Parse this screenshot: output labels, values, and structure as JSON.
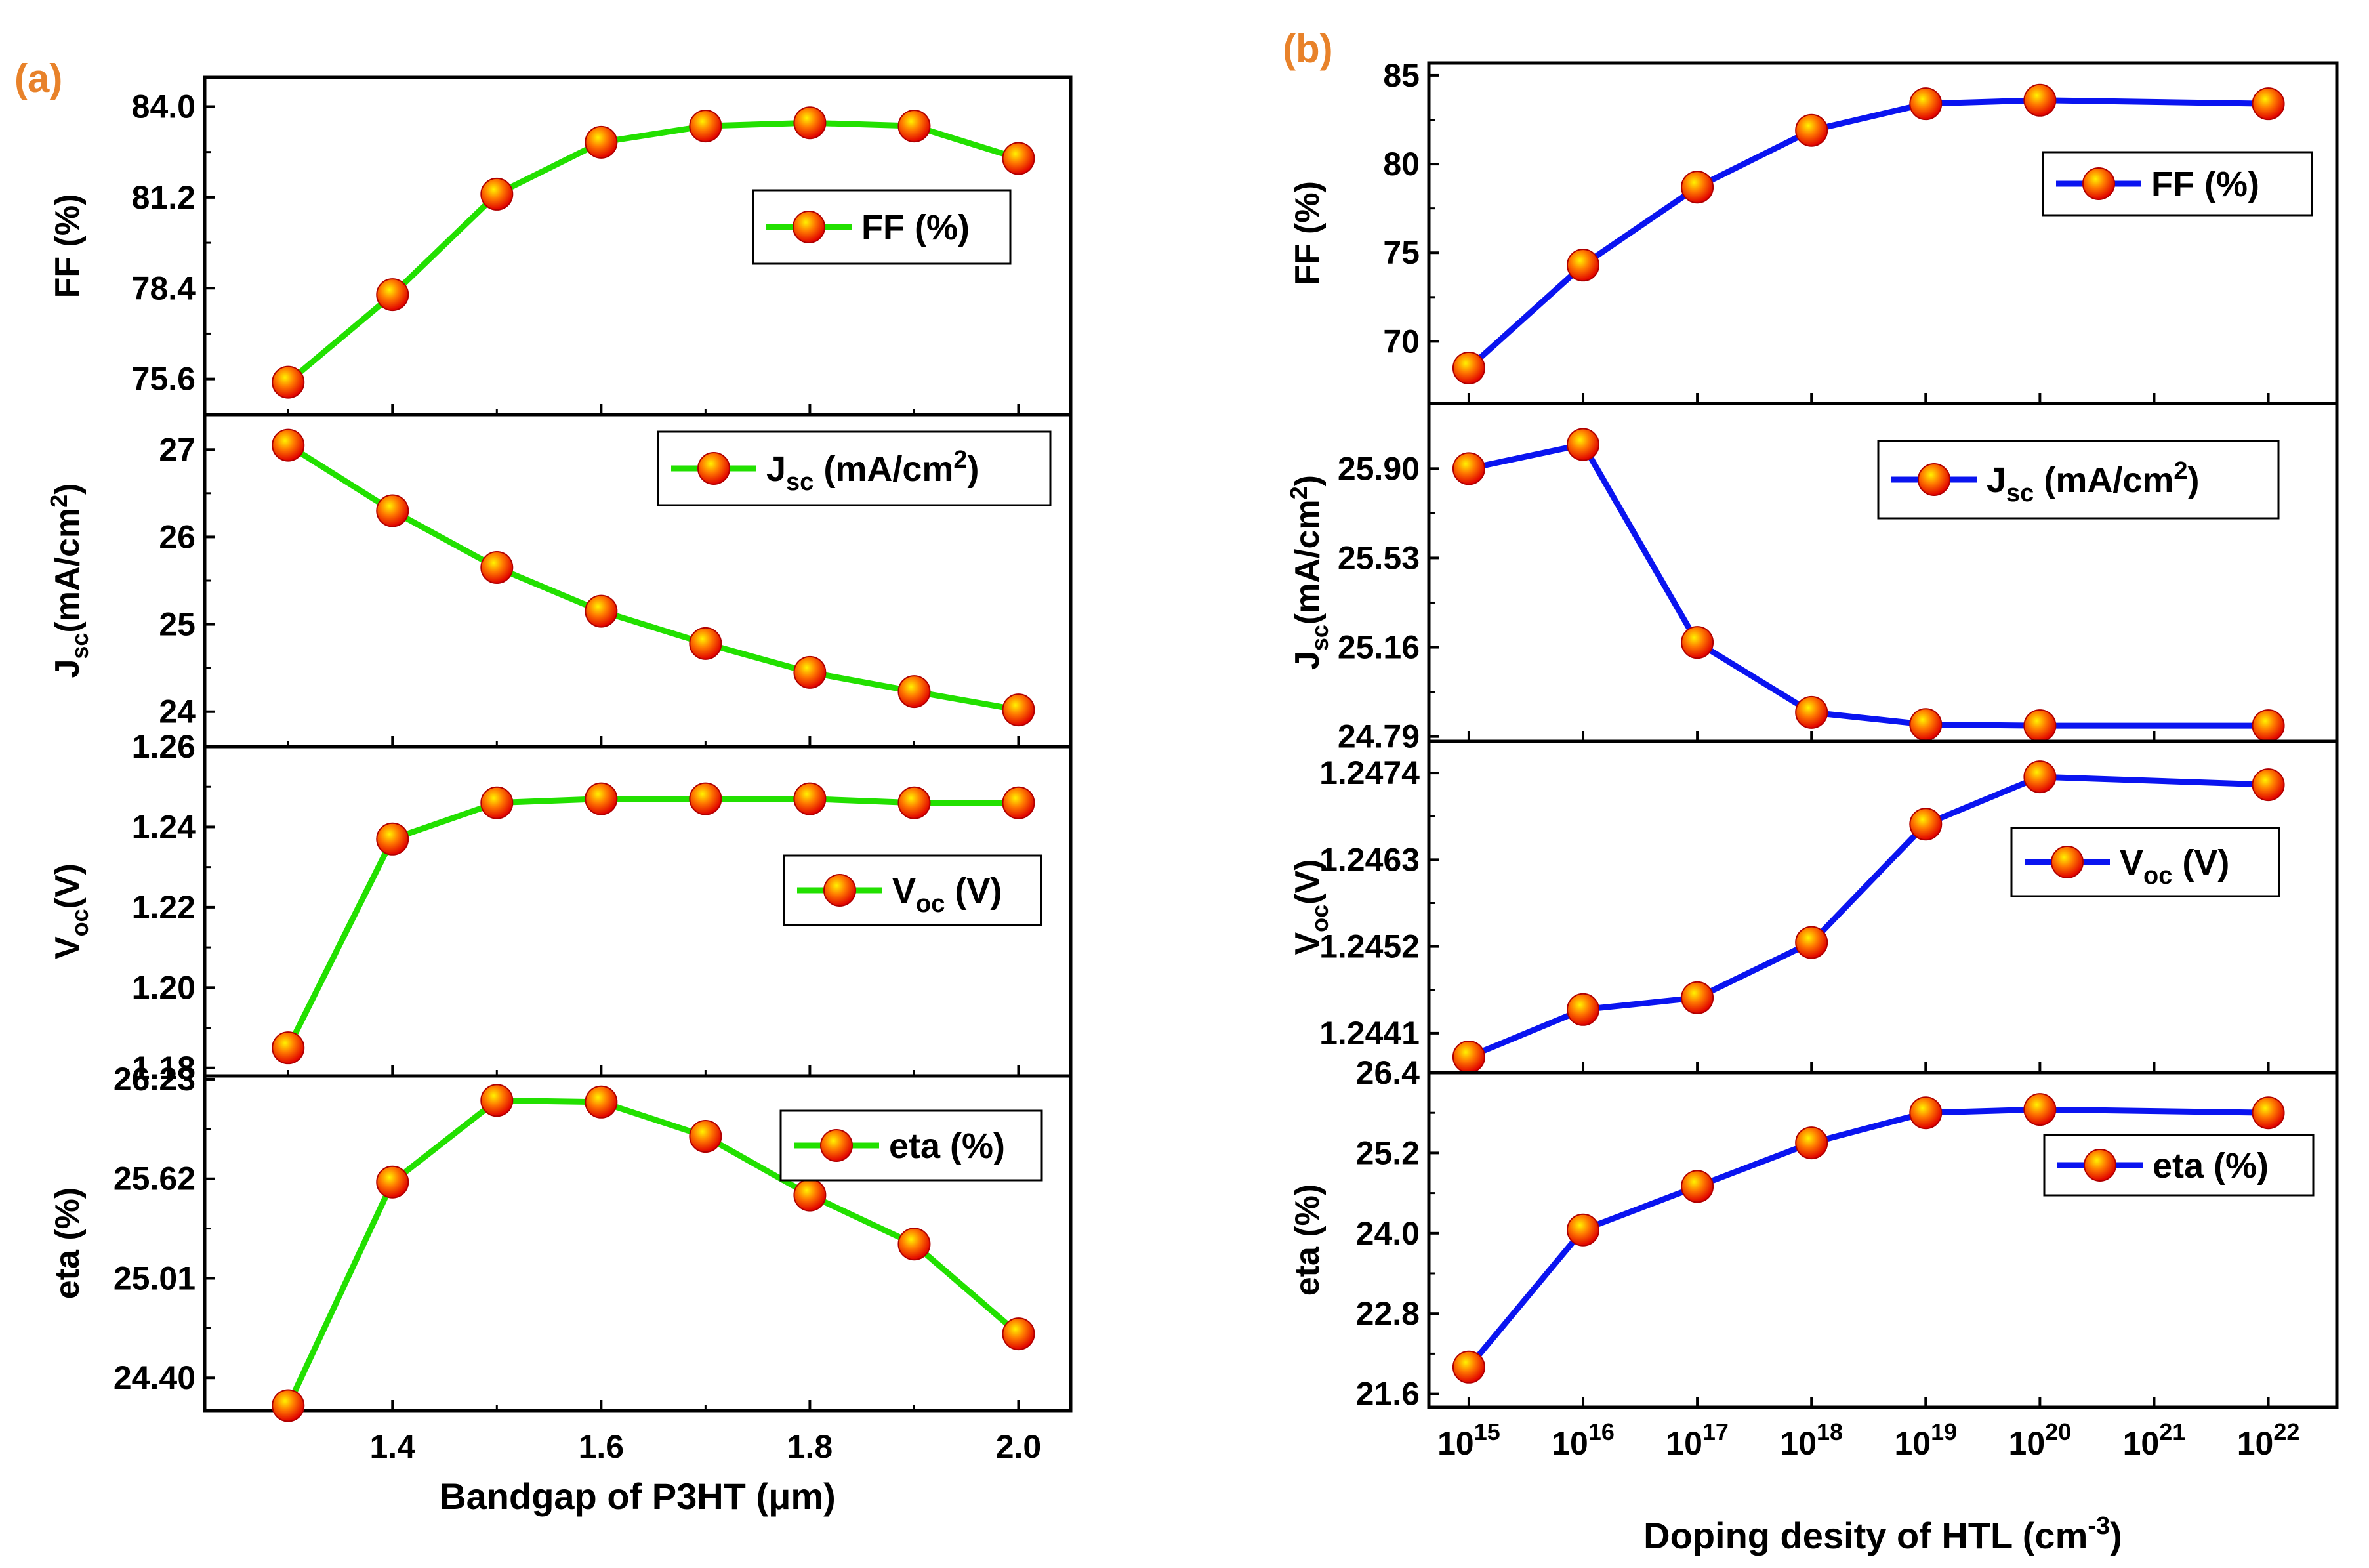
{
  "chart_data": [
    {
      "id": "a",
      "label": "(a)",
      "type": "line",
      "color": "#22E000",
      "xlabel": "Bandgap of P3HT (μm)",
      "xscale": "linear",
      "x": [
        1.3,
        1.4,
        1.5,
        1.6,
        1.7,
        1.8,
        1.9,
        2.0
      ],
      "xlim": [
        1.22,
        2.05
      ],
      "xticks": [
        1.4,
        1.6,
        1.8,
        2.0
      ],
      "xticklabels": [
        "1.4",
        "1.6",
        "1.8",
        "2.0"
      ],
      "panels": [
        {
          "name": "ff",
          "ylabel": "FF (%)",
          "ylabel_sub": "",
          "ylabel_tail": "",
          "legend": "FF (%)",
          "legend_sub": "",
          "legend_sup": "",
          "legend_tail": "",
          "ylim": [
            74.5,
            84.9
          ],
          "yticks": [
            75.6,
            78.4,
            81.2,
            84.0
          ],
          "yticklabels": [
            "75.6",
            "78.4",
            "81.2",
            "84.0"
          ],
          "values": [
            75.5,
            78.2,
            81.3,
            82.9,
            83.4,
            83.5,
            83.4,
            82.4
          ]
        },
        {
          "name": "jsc",
          "ylabel": "J",
          "ylabel_sub": "sc",
          "ylabel_tail": "(mA/cm2)",
          "legend": "J",
          "legend_sub": "sc",
          "legend_sup": "2",
          "legend_tail": " (mA/cm",
          "legend_close": ")",
          "ylim": [
            23.6,
            27.4
          ],
          "yticks": [
            24,
            25,
            26,
            27
          ],
          "yticklabels": [
            "24",
            "25",
            "26",
            "27"
          ],
          "values": [
            27.05,
            26.3,
            25.65,
            25.15,
            24.78,
            24.45,
            24.23,
            24.02
          ]
        },
        {
          "name": "voc",
          "ylabel": "V",
          "ylabel_sub": "oc",
          "ylabel_tail": "(V)",
          "legend": "V",
          "legend_sub": "oc",
          "legend_sup": "",
          "legend_tail": " (V)",
          "legend_close": "",
          "ylim": [
            1.178,
            1.26
          ],
          "yticks": [
            1.18,
            1.2,
            1.22,
            1.24,
            1.26
          ],
          "yticklabels": [
            "1.18",
            "1.20",
            "1.22",
            "1.24",
            "1.26"
          ],
          "values": [
            1.185,
            1.237,
            1.246,
            1.247,
            1.247,
            1.247,
            1.246,
            1.246
          ]
        },
        {
          "name": "eta",
          "ylabel": "eta (%)",
          "ylabel_sub": "",
          "ylabel_tail": "",
          "legend": "eta (%)",
          "legend_sub": "",
          "legend_sup": "",
          "legend_tail": "",
          "legend_close": "",
          "ylim": [
            24.2,
            26.25
          ],
          "yticks": [
            24.4,
            25.01,
            25.62,
            26.23
          ],
          "yticklabels": [
            "24.40",
            "25.01",
            "25.62",
            "26.23"
          ],
          "values": [
            24.23,
            25.6,
            26.1,
            26.09,
            25.88,
            25.52,
            25.22,
            24.67
          ]
        }
      ]
    },
    {
      "id": "b",
      "label": "(b)",
      "type": "line",
      "color": "#0A14F0",
      "xlabel": "Doping desity of HTL (cm",
      "xlabel_sup": "-3",
      "xlabel_close": ")",
      "xscale": "log",
      "x_exp": [
        15,
        16,
        17,
        18,
        19,
        20,
        22
      ],
      "xlim": [
        14.65,
        22.6
      ],
      "xticks": [
        15,
        16,
        17,
        18,
        19,
        20,
        21,
        22
      ],
      "xticklabels": [
        "10",
        "10",
        "10",
        "10",
        "10",
        "10",
        "10",
        "10"
      ],
      "xticksups": [
        "15",
        "16",
        "17",
        "18",
        "19",
        "20",
        "21",
        "22"
      ],
      "panels": [
        {
          "name": "ff",
          "ylabel": "FF (%)",
          "ylabel_sub": "",
          "ylabel_tail": "",
          "legend": "FF (%)",
          "legend_sub": "",
          "legend_sup": "",
          "legend_tail": "",
          "legend_close": "",
          "ylim": [
            66.5,
            85.7
          ],
          "yticks": [
            70,
            75,
            80,
            85
          ],
          "yticklabels": [
            "70",
            "75",
            "80",
            "85"
          ],
          "values": [
            68.5,
            74.3,
            78.7,
            81.9,
            83.4,
            83.6,
            83.4
          ]
        },
        {
          "name": "jsc",
          "ylabel": "J",
          "ylabel_sub": "sc",
          "ylabel_tail": "(mA/cm2)",
          "legend": "J",
          "legend_sub": "sc",
          "legend_sup": "2",
          "legend_tail": " (mA/cm",
          "legend_close": ")",
          "ylim": [
            24.77,
            26.17
          ],
          "yticks": [
            24.79,
            25.16,
            25.53,
            25.9
          ],
          "yticklabels": [
            "24.79",
            "25.16",
            "25.53",
            "25.90"
          ],
          "values": [
            25.9,
            26.0,
            25.18,
            24.89,
            24.84,
            24.835,
            24.835
          ]
        },
        {
          "name": "voc",
          "ylabel": "V",
          "ylabel_sub": "oc",
          "ylabel_tail": "(V)",
          "legend": "V",
          "legend_sub": "oc",
          "legend_sup": "",
          "legend_tail": " (V)",
          "legend_close": "",
          "ylim": [
            1.2436,
            1.2478
          ],
          "yticks": [
            1.2441,
            1.2452,
            1.2463,
            1.2474
          ],
          "yticklabels": [
            "1.2441",
            "1.2452",
            "1.2463",
            "1.2474"
          ],
          "values": [
            1.2438,
            1.2444,
            1.24455,
            1.24525,
            1.24675,
            1.24735,
            1.24725
          ]
        },
        {
          "name": "eta",
          "ylabel": "eta (%)",
          "ylabel_sub": "",
          "ylabel_tail": "",
          "legend": "eta (%)",
          "legend_sub": "",
          "legend_sup": "",
          "legend_tail": "",
          "legend_close": "",
          "ylim": [
            21.4,
            26.4
          ],
          "yticks": [
            21.6,
            22.8,
            24.0,
            25.2,
            26.4
          ],
          "yticklabels": [
            "21.6",
            "22.8",
            "24.0",
            "25.2",
            "26.4"
          ],
          "values": [
            22.0,
            24.05,
            24.7,
            25.35,
            25.8,
            25.85,
            25.8
          ]
        }
      ]
    }
  ]
}
